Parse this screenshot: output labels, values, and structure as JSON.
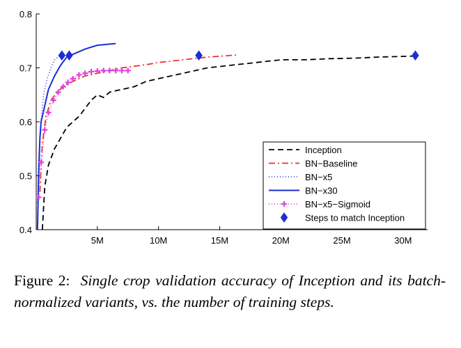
{
  "chart_data": {
    "type": "line",
    "title": "",
    "xlabel": "",
    "ylabel": "",
    "xlim": [
      0,
      32000000
    ],
    "ylim": [
      0.4,
      0.8
    ],
    "x_ticks": [
      5000000,
      10000000,
      15000000,
      20000000,
      25000000,
      30000000
    ],
    "x_tick_labels": [
      "5M",
      "10M",
      "15M",
      "20M",
      "25M",
      "30M"
    ],
    "y_ticks": [
      0.4,
      0.5,
      0.6,
      0.7,
      0.8
    ],
    "y_tick_labels": [
      "0.4",
      "0.5",
      "0.6",
      "0.7",
      "0.8"
    ],
    "grid": false,
    "legend_position": "bottom-right",
    "series": [
      {
        "name": "Inception",
        "color": "#000000",
        "style": "dashed",
        "points": [
          [
            500000,
            0.4
          ],
          [
            700000,
            0.48
          ],
          [
            1000000,
            0.52
          ],
          [
            1500000,
            0.55
          ],
          [
            2000000,
            0.57
          ],
          [
            2500000,
            0.59
          ],
          [
            3000000,
            0.6
          ],
          [
            3500000,
            0.61
          ],
          [
            4000000,
            0.625
          ],
          [
            4500000,
            0.64
          ],
          [
            5000000,
            0.65
          ],
          [
            5500000,
            0.645
          ],
          [
            6000000,
            0.655
          ],
          [
            7000000,
            0.66
          ],
          [
            8000000,
            0.665
          ],
          [
            9000000,
            0.675
          ],
          [
            10000000,
            0.68
          ],
          [
            12000000,
            0.69
          ],
          [
            14000000,
            0.7
          ],
          [
            16000000,
            0.705
          ],
          [
            18000000,
            0.71
          ],
          [
            20000000,
            0.715
          ],
          [
            22000000,
            0.715
          ],
          [
            24000000,
            0.717
          ],
          [
            26000000,
            0.718
          ],
          [
            28000000,
            0.72
          ],
          [
            31000000,
            0.722
          ]
        ]
      },
      {
        "name": "BN−Baseline",
        "color": "#e8342c",
        "style": "dashdot",
        "points": [
          [
            300000,
            0.47
          ],
          [
            500000,
            0.56
          ],
          [
            800000,
            0.61
          ],
          [
            1200000,
            0.64
          ],
          [
            1700000,
            0.655
          ],
          [
            2200000,
            0.665
          ],
          [
            3000000,
            0.675
          ],
          [
            4000000,
            0.685
          ],
          [
            5000000,
            0.69
          ],
          [
            6000000,
            0.695
          ],
          [
            7000000,
            0.7
          ],
          [
            8000000,
            0.703
          ],
          [
            9000000,
            0.706
          ],
          [
            10000000,
            0.71
          ],
          [
            12000000,
            0.715
          ],
          [
            14000000,
            0.72
          ],
          [
            16500000,
            0.724
          ]
        ]
      },
      {
        "name": "BN−x5",
        "color": "#4444dd",
        "style": "dotted",
        "points": [
          [
            100000,
            0.45
          ],
          [
            200000,
            0.53
          ],
          [
            400000,
            0.6
          ],
          [
            600000,
            0.65
          ],
          [
            900000,
            0.68
          ],
          [
            1200000,
            0.7
          ],
          [
            1500000,
            0.715
          ],
          [
            2000000,
            0.724
          ]
        ]
      },
      {
        "name": "BN−x30",
        "color": "#1a2dd6",
        "style": "solid",
        "points": [
          [
            100000,
            0.4
          ],
          [
            200000,
            0.5
          ],
          [
            300000,
            0.57
          ],
          [
            400000,
            0.6
          ],
          [
            700000,
            0.63
          ],
          [
            1000000,
            0.66
          ],
          [
            1500000,
            0.685
          ],
          [
            2000000,
            0.705
          ],
          [
            2500000,
            0.72
          ],
          [
            3000000,
            0.725
          ],
          [
            4000000,
            0.735
          ],
          [
            5000000,
            0.742
          ],
          [
            6000000,
            0.744
          ],
          [
            6500000,
            0.745
          ]
        ]
      },
      {
        "name": "BN−x5−Sigmoid",
        "color": "#e040e0",
        "style": "dotted-plus",
        "points": [
          [
            200000,
            0.46
          ],
          [
            400000,
            0.525
          ],
          [
            700000,
            0.585
          ],
          [
            1000000,
            0.617
          ],
          [
            1400000,
            0.64
          ],
          [
            1800000,
            0.655
          ],
          [
            2200000,
            0.665
          ],
          [
            2600000,
            0.673
          ],
          [
            3000000,
            0.68
          ],
          [
            3500000,
            0.687
          ],
          [
            4000000,
            0.69
          ],
          [
            4500000,
            0.693
          ],
          [
            5000000,
            0.694
          ],
          [
            5500000,
            0.695
          ],
          [
            6000000,
            0.695
          ],
          [
            6500000,
            0.695
          ],
          [
            7000000,
            0.695
          ],
          [
            7500000,
            0.695
          ]
        ]
      },
      {
        "name": "Steps to match Inception",
        "color": "#1a2dd6",
        "style": "diamond",
        "points": [
          [
            2100000,
            0.723
          ],
          [
            2700000,
            0.723
          ],
          [
            13300000,
            0.723
          ],
          [
            31000000,
            0.723
          ]
        ]
      }
    ]
  },
  "caption": {
    "label": "Figure 2:",
    "text": "Single crop validation accuracy of Inception and its batch-normalized variants, vs.  the number of training steps."
  }
}
